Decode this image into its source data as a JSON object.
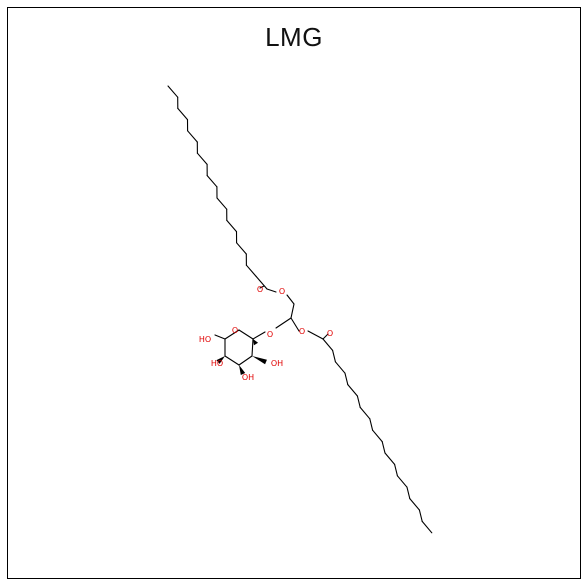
{
  "title": "LMG",
  "atom_labels": {
    "ester_O_upper": "O",
    "carbonyl_O_upper": "O",
    "glycosidic_O": "O",
    "ester_O_lower": "O",
    "carbonyl_O_lower": "O",
    "ring_O": "O",
    "hydroxyl_6": "HO",
    "hydroxyl_4": "HO",
    "hydroxyl_3": "OH",
    "hydroxyl_2": "OH"
  },
  "colors": {
    "bond": "#000000",
    "oxygen": "#e00000",
    "frame": "#000000"
  }
}
